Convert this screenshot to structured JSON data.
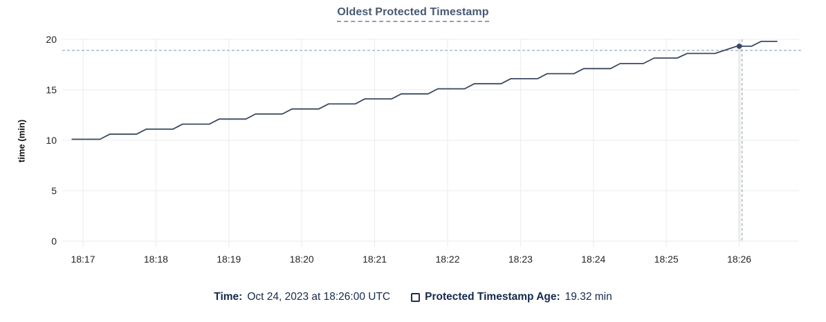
{
  "chart": {
    "title": "Oldest Protected Timestamp",
    "y_axis_title": "time (min)"
  },
  "legend": {
    "time_label": "Time:",
    "time_value": "Oct 24, 2023 at 18:26:00 UTC",
    "series_label": "Protected Timestamp Age:",
    "series_value": "19.32 min"
  },
  "colors": {
    "line": "#3a4861",
    "dot": "#3a4861",
    "gridline": "#ebebeb",
    "guideline_band": "#ececec",
    "crosshair": "#9fb2c4",
    "tick_label": "#242424",
    "title": "#475872",
    "legend_text": "#15294d"
  },
  "chart_data": {
    "type": "line",
    "title": "Oldest Protected Timestamp",
    "xlabel": "",
    "ylabel": "time (min)",
    "ylim": [
      0,
      20
    ],
    "grid": true,
    "legend_position": "bottom",
    "y_ticks": [
      0,
      5,
      10,
      15,
      20
    ],
    "x_ticks": [
      "18:17",
      "18:18",
      "18:19",
      "18:20",
      "18:21",
      "18:22",
      "18:23",
      "18:24",
      "18:25",
      "18:26"
    ],
    "series": [
      {
        "name": "Protected Timestamp Age",
        "unit": "min",
        "points": [
          [
            "18:16:51",
            10.1
          ],
          [
            "18:17:14",
            10.1
          ],
          [
            "18:17:22",
            10.6
          ],
          [
            "18:17:44",
            10.6
          ],
          [
            "18:17:52",
            11.1
          ],
          [
            "18:18:14",
            11.1
          ],
          [
            "18:18:22",
            11.6
          ],
          [
            "18:18:44",
            11.6
          ],
          [
            "18:18:52",
            12.1
          ],
          [
            "18:19:14",
            12.1
          ],
          [
            "18:19:22",
            12.6
          ],
          [
            "18:19:44",
            12.6
          ],
          [
            "18:19:52",
            13.1
          ],
          [
            "18:20:14",
            13.1
          ],
          [
            "18:20:22",
            13.6
          ],
          [
            "18:20:44",
            13.6
          ],
          [
            "18:20:52",
            14.1
          ],
          [
            "18:21:14",
            14.1
          ],
          [
            "18:21:22",
            14.6
          ],
          [
            "18:21:44",
            14.6
          ],
          [
            "18:21:52",
            15.1
          ],
          [
            "18:22:14",
            15.1
          ],
          [
            "18:22:22",
            15.6
          ],
          [
            "18:22:44",
            15.6
          ],
          [
            "18:22:52",
            16.1
          ],
          [
            "18:23:14",
            16.1
          ],
          [
            "18:23:22",
            16.6
          ],
          [
            "18:23:44",
            16.6
          ],
          [
            "18:23:52",
            17.1
          ],
          [
            "18:24:14",
            17.1
          ],
          [
            "18:24:22",
            17.6
          ],
          [
            "18:24:41",
            17.6
          ],
          [
            "18:24:50",
            18.15
          ],
          [
            "18:25:09",
            18.15
          ],
          [
            "18:25:17",
            18.6
          ],
          [
            "18:25:40",
            18.6
          ],
          [
            "18:25:58",
            19.32
          ],
          [
            "18:26:10",
            19.32
          ],
          [
            "18:26:18",
            19.8
          ],
          [
            "18:26:31",
            19.8
          ]
        ]
      }
    ],
    "hover_point": {
      "time": "18:26:00",
      "time_display": "Oct 24, 2023 at 18:26:00 UTC",
      "value": 19.32,
      "value_display": "19.32 min"
    }
  }
}
